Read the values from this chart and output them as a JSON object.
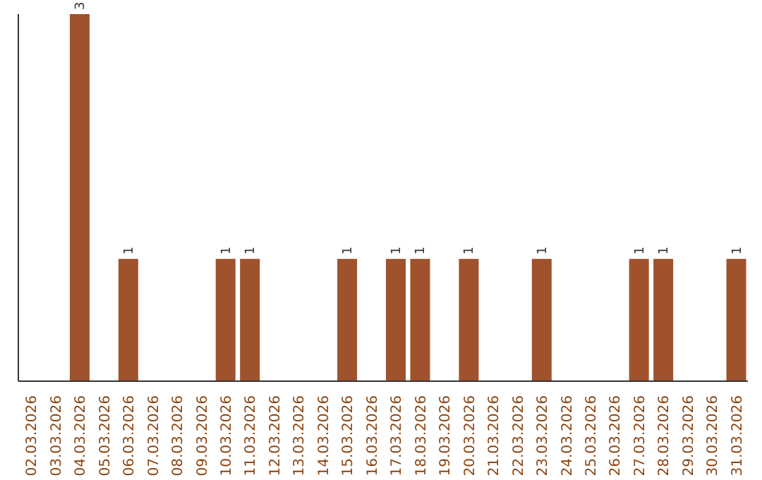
{
  "chart_data": {
    "type": "bar",
    "categories": [
      "02.03.2026",
      "03.03.2026",
      "04.03.2026",
      "05.03.2026",
      "06.03.2026",
      "07.03.2026",
      "08.03.2026",
      "09.03.2026",
      "10.03.2026",
      "11.03.2026",
      "12.03.2026",
      "13.03.2026",
      "14.03.2026",
      "15.03.2026",
      "16.03.2026",
      "17.03.2026",
      "18.03.2026",
      "19.03.2026",
      "20.03.2026",
      "21.03.2026",
      "22.03.2026",
      "23.03.2026",
      "24.03.2026",
      "25.03.2026",
      "26.03.2026",
      "27.03.2026",
      "28.03.2026",
      "29.03.2026",
      "30.03.2026",
      "31.03.2026"
    ],
    "values": [
      0,
      0,
      3,
      0,
      1,
      0,
      0,
      0,
      1,
      1,
      0,
      0,
      0,
      1,
      0,
      1,
      1,
      0,
      1,
      0,
      0,
      1,
      0,
      0,
      0,
      1,
      1,
      0,
      0,
      1
    ],
    "value_labels": [
      null,
      null,
      "3",
      null,
      "1",
      null,
      null,
      null,
      "1",
      "1",
      null,
      null,
      null,
      "1",
      null,
      "1",
      "1",
      null,
      "1",
      null,
      null,
      "1",
      null,
      null,
      null,
      "1",
      "1",
      null,
      null,
      "1"
    ],
    "color": "#a0522d",
    "tick_labels": "x",
    "grid": false,
    "legend": false
  }
}
